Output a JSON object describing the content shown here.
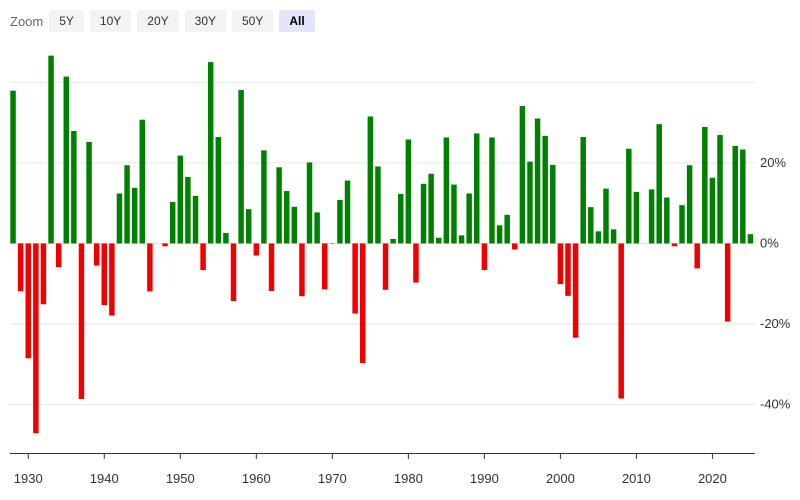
{
  "toolbar": {
    "zoom_label": "Zoom",
    "buttons": [
      "5Y",
      "10Y",
      "20Y",
      "30Y",
      "50Y",
      "All"
    ],
    "active": "All"
  },
  "colors": {
    "positive": "#008000",
    "negative": "#f10000",
    "grid": "#e6e6e6",
    "axis": "#333333"
  },
  "chart_data": {
    "type": "bar",
    "title": "",
    "xlabel": "",
    "ylabel": "",
    "ylim": [
      -52,
      48
    ],
    "y_ticks": [
      20,
      0,
      -20,
      -40
    ],
    "y_tick_labels": [
      "20%",
      "0%",
      "-20%",
      "-40%"
    ],
    "x_ticks": [
      1930,
      1940,
      1950,
      1960,
      1970,
      1980,
      1990,
      2000,
      2010,
      2020
    ],
    "x_tick_labels": [
      "1930",
      "1940",
      "1950",
      "1960",
      "1970",
      "1980",
      "1990",
      "2000",
      "2010",
      "2020"
    ],
    "years": [
      1928,
      1929,
      1930,
      1931,
      1932,
      1933,
      1934,
      1935,
      1936,
      1937,
      1938,
      1939,
      1940,
      1941,
      1942,
      1943,
      1944,
      1945,
      1946,
      1947,
      1948,
      1949,
      1950,
      1951,
      1952,
      1953,
      1954,
      1955,
      1956,
      1957,
      1958,
      1959,
      1960,
      1961,
      1962,
      1963,
      1964,
      1965,
      1966,
      1967,
      1968,
      1969,
      1970,
      1971,
      1972,
      1973,
      1974,
      1975,
      1976,
      1977,
      1978,
      1979,
      1980,
      1981,
      1982,
      1983,
      1984,
      1985,
      1986,
      1987,
      1988,
      1989,
      1990,
      1991,
      1992,
      1993,
      1994,
      1995,
      1996,
      1997,
      1998,
      1999,
      2000,
      2001,
      2002,
      2003,
      2004,
      2005,
      2006,
      2007,
      2008,
      2009,
      2010,
      2011,
      2012,
      2013,
      2014,
      2015,
      2016,
      2017,
      2018,
      2019,
      2020,
      2021,
      2022,
      2023,
      2024,
      2025
    ],
    "values": [
      37.9,
      -11.9,
      -28.5,
      -47.1,
      -15.1,
      46.6,
      -5.9,
      41.4,
      27.9,
      -38.6,
      25.2,
      -5.5,
      -15.3,
      -17.9,
      12.4,
      19.4,
      13.8,
      30.7,
      -11.9,
      0,
      -0.7,
      10.3,
      21.8,
      16.5,
      11.8,
      -6.6,
      45.0,
      26.4,
      2.6,
      -14.3,
      38.1,
      8.5,
      -3.0,
      23.1,
      -11.8,
      18.9,
      13.0,
      9.1,
      -13.1,
      20.1,
      7.7,
      -11.4,
      0.1,
      10.8,
      15.6,
      -17.4,
      -29.7,
      31.5,
      19.1,
      -11.5,
      1.1,
      12.3,
      25.8,
      -9.7,
      14.8,
      17.3,
      1.4,
      26.3,
      14.6,
      2.0,
      12.4,
      27.3,
      -6.6,
      26.3,
      4.5,
      7.1,
      -1.5,
      34.1,
      20.3,
      31.0,
      26.7,
      19.5,
      -10.1,
      -13.0,
      -23.4,
      26.4,
      9.0,
      3.0,
      13.6,
      3.5,
      -38.5,
      23.5,
      12.8,
      0,
      13.4,
      29.6,
      11.4,
      -0.7,
      9.5,
      19.4,
      -6.2,
      28.9,
      16.3,
      26.9,
      -19.4,
      24.2,
      23.3,
      2.3
    ]
  }
}
